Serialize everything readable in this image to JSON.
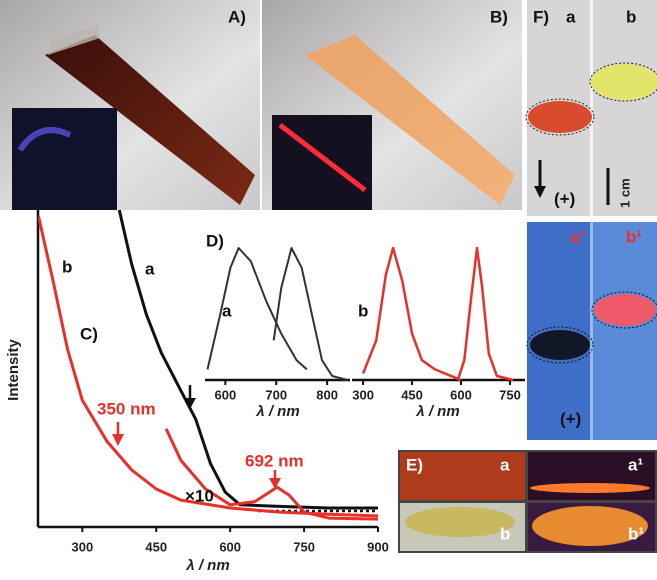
{
  "panels": {
    "A": {
      "label": "A)"
    },
    "B": {
      "label": "B)"
    },
    "F": {
      "label": "F)",
      "top": [
        "a",
        "b"
      ],
      "polarity": "(+)",
      "scale": "1 cm",
      "bottom": [
        "a¹",
        "b¹"
      ],
      "bottom_polarity": "(+)"
    },
    "E": {
      "label": "E)",
      "items": [
        "a",
        "a¹",
        "b",
        "b¹"
      ]
    }
  },
  "chart_data": [
    {
      "type": "line",
      "title": "C)",
      "x_label": "λ / nm",
      "y_label": "Intensity",
      "xlim": [
        210,
        900
      ],
      "ylim": [
        0,
        1
      ],
      "xticks": [
        300,
        450,
        600,
        750,
        900
      ],
      "annotations": [
        "350 nm",
        "692 nm"
      ],
      "series": [
        {
          "name": "a",
          "color": "#111111",
          "x": [
            375,
            400,
            430,
            460,
            500,
            530,
            560,
            590,
            620,
            700,
            800,
            900
          ],
          "values": [
            1.0,
            0.83,
            0.67,
            0.55,
            0.43,
            0.34,
            0.2,
            0.11,
            0.07,
            0.065,
            0.06,
            0.06
          ]
        },
        {
          "name": "b",
          "color": "#e8302a",
          "x": [
            211,
            240,
            270,
            300,
            350,
            400,
            450,
            500,
            600,
            700,
            800,
            900
          ],
          "values": [
            0.98,
            0.78,
            0.56,
            0.4,
            0.27,
            0.18,
            0.12,
            0.085,
            0.06,
            0.047,
            0.04,
            0.035
          ]
        },
        {
          "name": "×10",
          "color": "#e8302a",
          "x": [
            470,
            500,
            550,
            600,
            650,
            680,
            695,
            720,
            750,
            800,
            900
          ],
          "values": [
            0.31,
            0.21,
            0.12,
            0.07,
            0.08,
            0.11,
            0.126,
            0.1,
            0.047,
            0.028,
            0.025
          ]
        }
      ]
    },
    {
      "type": "line",
      "title": "D)",
      "x_label": "λ / nm",
      "label_color": "#e8302a",
      "xlim": [
        560,
        845
      ],
      "ylim": [
        0,
        1
      ],
      "xticks": [
        600,
        700,
        800
      ],
      "series": [
        {
          "name": "a",
          "color": "#333333",
          "x": [
            565,
            590,
            610,
            626,
            650,
            680,
            710,
            740,
            760
          ],
          "values": [
            0.08,
            0.5,
            0.85,
            1.0,
            0.9,
            0.6,
            0.35,
            0.15,
            0.08
          ]
        },
        {
          "color": "#333333",
          "x": [
            695,
            710,
            730,
            750,
            770,
            790,
            810,
            840
          ],
          "values": [
            0.3,
            0.7,
            1.0,
            0.85,
            0.5,
            0.15,
            0.03,
            0.0
          ]
        }
      ]
    },
    {
      "type": "line",
      "x_label": "λ / nm",
      "label_color": "#e8302a",
      "xlim": [
        266,
        796
      ],
      "ylim": [
        0,
        1
      ],
      "xticks": [
        300,
        450,
        600,
        750
      ],
      "series": [
        {
          "name": "b",
          "color": "#e8302a",
          "x": [
            300,
            340,
            370,
            392,
            420,
            450,
            480,
            520,
            560,
            600
          ],
          "values": [
            0.05,
            0.3,
            0.8,
            1.0,
            0.75,
            0.35,
            0.15,
            0.08,
            0.04,
            0.0
          ]
        },
        {
          "color": "#e8302a",
          "x": [
            590,
            610,
            630,
            649,
            665,
            685,
            710,
            760
          ],
          "values": [
            0.0,
            0.15,
            0.6,
            1.0,
            0.7,
            0.2,
            0.03,
            0.0
          ]
        }
      ]
    }
  ]
}
